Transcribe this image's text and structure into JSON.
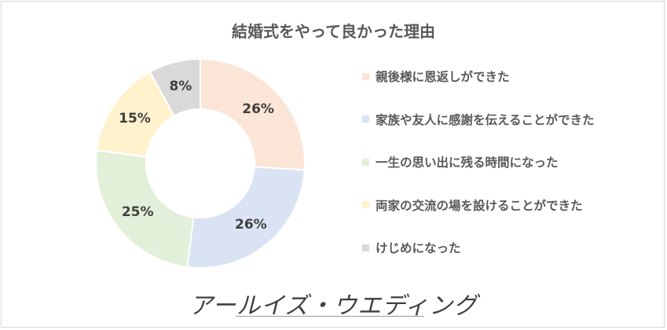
{
  "chart_data": {
    "type": "pie",
    "title": "結婚式をやって良かった理由",
    "donut": true,
    "legend_position": "right",
    "slices": [
      {
        "label": "親後様に恩返しができた",
        "value": 26,
        "color": "#fbe5d6"
      },
      {
        "label": "家族や友人に感謝を伝えることができた",
        "value": 26,
        "color": "#dae3f3"
      },
      {
        "label": "一生の思い出に残る時間になった",
        "value": 25,
        "color": "#e2f0d9"
      },
      {
        "label": "両家の交流の場を設けることができた",
        "value": 15,
        "color": "#fff2cc"
      },
      {
        "label": "けじめになった",
        "value": 8,
        "color": "#d9d9d9"
      }
    ],
    "data_labels": [
      "26%",
      "26%",
      "25%",
      "15%",
      "8%"
    ]
  },
  "brand": {
    "logo_text": "アールイズ・ウエディング"
  }
}
